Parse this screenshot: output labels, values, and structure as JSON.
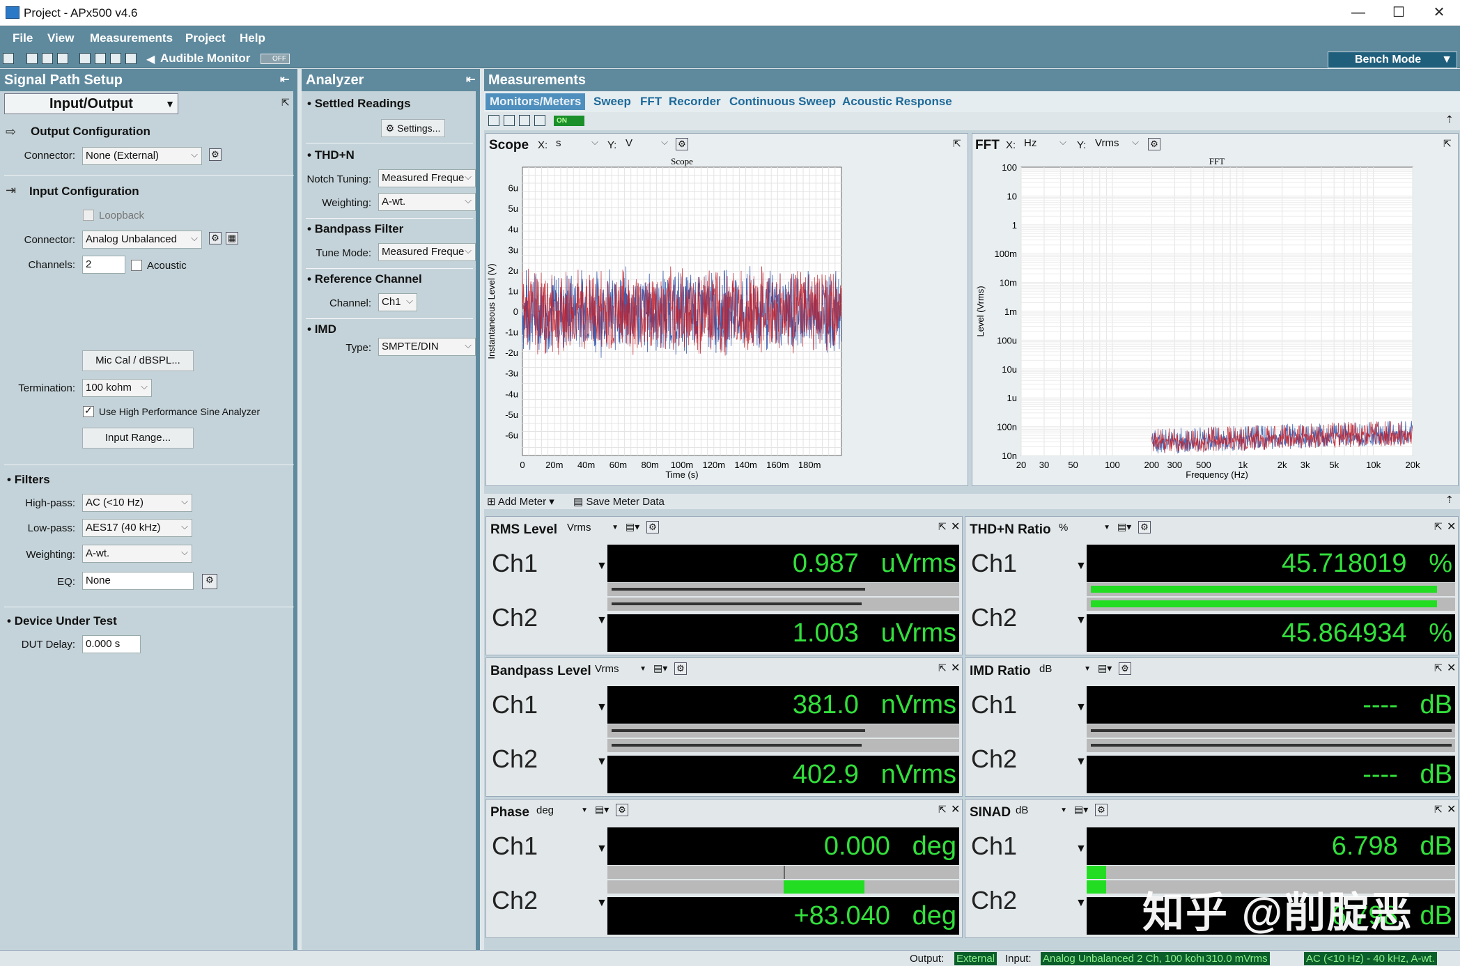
{
  "window": {
    "title": "Project - APx500 v4.6",
    "min": "—",
    "max": "☐",
    "close": "✕"
  },
  "menu": [
    "File",
    "View",
    "Measurements",
    "Project",
    "Help"
  ],
  "toolbar": {
    "audible_monitor": "Audible Monitor",
    "off": "OFF",
    "bench_mode": "Bench Mode"
  },
  "signal_path": {
    "title": "Signal Path Setup",
    "mode": "Input/Output",
    "output_config": "Output Configuration",
    "output_connector_label": "Connector:",
    "output_connector": "None (External)",
    "input_config": "Input Configuration",
    "loopback": "Loopback",
    "input_connector_label": "Connector:",
    "input_connector": "Analog Unbalanced",
    "channels_label": "Channels:",
    "channels": "2",
    "acoustic": "Acoustic",
    "mic_cal": "Mic Cal / dBSPL...",
    "termination_label": "Termination:",
    "termination": "100 kohm",
    "use_hp": "Use High Performance Sine Analyzer",
    "input_range": "Input Range...",
    "filters": "Filters",
    "highpass_label": "High-pass:",
    "highpass": "AC (<10 Hz)",
    "lowpass_label": "Low-pass:",
    "lowpass": "AES17 (40 kHz)",
    "weighting_label": "Weighting:",
    "weighting": "A-wt.",
    "eq_label": "EQ:",
    "eq": "None",
    "dut": "Device Under Test",
    "dut_delay_label": "DUT Delay:",
    "dut_delay": "0.000 s"
  },
  "analyzer": {
    "title": "Analyzer",
    "settled": "Settled Readings",
    "settings": "Settings...",
    "thdn": "THD+N",
    "notch_label": "Notch Tuning:",
    "notch": "Measured Freque",
    "weighting_label": "Weighting:",
    "weighting": "A-wt.",
    "bandpass": "Bandpass Filter",
    "tune_label": "Tune Mode:",
    "tune": "Measured Freque",
    "refch": "Reference Channel",
    "channel_label": "Channel:",
    "channel": "Ch1",
    "imd": "IMD",
    "type_label": "Type:",
    "type": "SMPTE/DIN"
  },
  "measurements": {
    "title": "Measurements",
    "tabs": [
      "Monitors/Meters",
      "Sweep",
      "FFT",
      "Recorder",
      "Continuous Sweep",
      "Acoustic Response"
    ],
    "on": "ON",
    "add_meter": "Add Meter",
    "save_meter": "Save Meter Data"
  },
  "scope": {
    "panel": "Scope",
    "x_label": "X:",
    "x_unit": "s",
    "y_label": "Y:",
    "y_unit": "V",
    "plot_title": "Scope",
    "xlabel": "Time (s)",
    "ylabel": "Instantaneous Level (V)",
    "yticks": [
      "6u",
      "5u",
      "4u",
      "3u",
      "2u",
      "1u",
      "0",
      "-1u",
      "-2u",
      "-3u",
      "-4u",
      "-5u",
      "-6u"
    ],
    "xticks": [
      "0",
      "20m",
      "40m",
      "60m",
      "80m",
      "100m",
      "120m",
      "140m",
      "160m",
      "180m"
    ]
  },
  "fft": {
    "panel": "FFT",
    "x_label": "X:",
    "x_unit": "Hz",
    "y_label": "Y:",
    "y_unit": "Vrms",
    "plot_title": "FFT",
    "xlabel": "Frequency (Hz)",
    "ylabel": "Level (Vrms)",
    "yticks": [
      "100",
      "10",
      "1",
      "100m",
      "10m",
      "1m",
      "100u",
      "10u",
      "1u",
      "100n",
      "10n"
    ],
    "xticks": [
      "20",
      "30",
      "50",
      "100",
      "200",
      "300",
      "500",
      "1k",
      "2k",
      "3k",
      "5k",
      "10k",
      "20k"
    ]
  },
  "colors": {
    "ch1": "#2a4fa8",
    "ch2": "#c0202c",
    "meter_green": "#33e03c",
    "panel_bg": "#c4d3d9",
    "header_bg": "#5f8a9e"
  },
  "meters": [
    {
      "title": "RMS Level",
      "unit": "Vrms",
      "ch1": "0.987",
      "ch1_unit": "uVrms",
      "ch2": "1.003",
      "ch2_unit": "uVrms"
    },
    {
      "title": "THD+N Ratio",
      "unit": "%",
      "ch1": "45.718019",
      "ch1_unit": "%",
      "ch2": "45.864934",
      "ch2_unit": "%"
    },
    {
      "title": "Bandpass Level",
      "unit": "Vrms",
      "ch1": "381.0",
      "ch1_unit": "nVrms",
      "ch2": "402.9",
      "ch2_unit": "nVrms"
    },
    {
      "title": "IMD Ratio",
      "unit": "dB",
      "ch1": "----",
      "ch1_unit": "dB",
      "ch2": "----",
      "ch2_unit": "dB"
    },
    {
      "title": "Phase",
      "unit": "deg",
      "ch1": "0.000",
      "ch1_unit": "deg",
      "ch2": "+83.040",
      "ch2_unit": "deg"
    },
    {
      "title": "SINAD",
      "unit": "dB",
      "ch1": "6.798",
      "ch1_unit": "dB",
      "ch2": "6.798",
      "ch2_unit": "dB"
    }
  ],
  "channels": [
    "Ch1",
    "Ch2"
  ],
  "status": {
    "output_label": "Output:",
    "output": "External",
    "input_label": "Input:",
    "input": "Analog Unbalanced 2 Ch, 100 kohm",
    "level": "310.0 mVrms",
    "filter": "AC (<10 Hz) - 40 kHz, A-wt."
  },
  "watermark": "知乎 @削腚恶"
}
